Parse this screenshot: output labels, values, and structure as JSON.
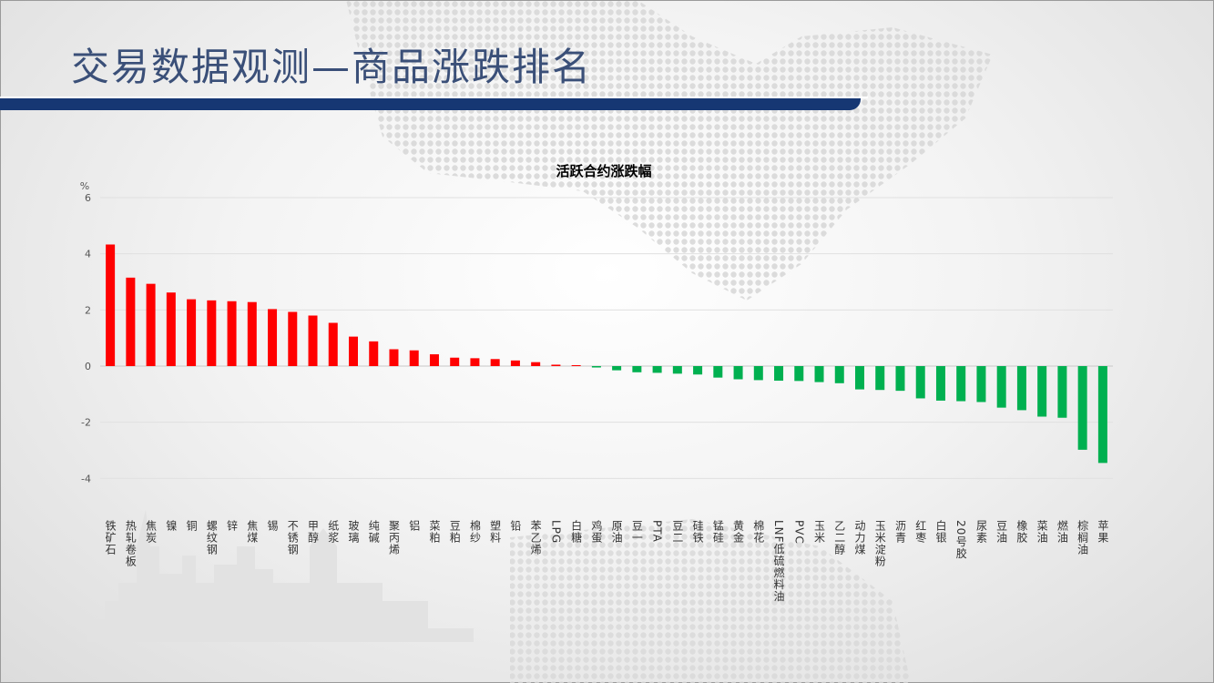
{
  "page": {
    "title": "交易数据观测—商品涨跌排名"
  },
  "colors": {
    "up": "#ff0000",
    "down": "#00b050",
    "title_bar": "#163773",
    "title_text": "#3a4f78"
  },
  "chart_data": {
    "type": "bar",
    "title": "活跃合约涨跌幅",
    "ylabel": "%",
    "xlabel": "",
    "ylim": [
      -4,
      6
    ],
    "yticks": [
      -4,
      -2,
      0,
      2,
      4,
      6
    ],
    "grid": true,
    "categories": [
      "铁矿石",
      "热轧卷板",
      "焦炭",
      "镍",
      "铜",
      "螺纹钢",
      "锌",
      "焦煤",
      "锡",
      "不锈钢",
      "甲醇",
      "纸浆",
      "玻璃",
      "纯碱",
      "聚丙烯",
      "铝",
      "菜粕",
      "豆粕",
      "棉纱",
      "塑料",
      "铅",
      "苯乙烯",
      "LPG",
      "白糖",
      "鸡蛋",
      "原油",
      "豆一",
      "PTA",
      "豆二",
      "硅铁",
      "锰硅",
      "黄金",
      "棉花",
      "LNF低硫燃料油",
      "PVC",
      "玉米",
      "乙二醇",
      "动力煤",
      "玉米淀粉",
      "沥青",
      "红枣",
      "白银",
      "20号胶",
      "尿素",
      "豆油",
      "橡胶",
      "菜油",
      "燃油",
      "棕榈油",
      "苹果"
    ],
    "values": [
      4.33,
      3.15,
      2.93,
      2.62,
      2.38,
      2.34,
      2.31,
      2.28,
      2.03,
      1.93,
      1.8,
      1.54,
      1.05,
      0.88,
      0.6,
      0.56,
      0.42,
      0.3,
      0.28,
      0.25,
      0.2,
      0.14,
      0.05,
      0.0,
      -0.05,
      -0.15,
      -0.22,
      -0.24,
      -0.27,
      -0.3,
      -0.41,
      -0.47,
      -0.5,
      -0.52,
      -0.53,
      -0.57,
      -0.61,
      -0.83,
      -0.85,
      -0.88,
      -1.15,
      -1.23,
      -1.25,
      -1.28,
      -1.48,
      -1.57,
      -1.8,
      -1.84,
      -2.98,
      -3.45
    ]
  }
}
